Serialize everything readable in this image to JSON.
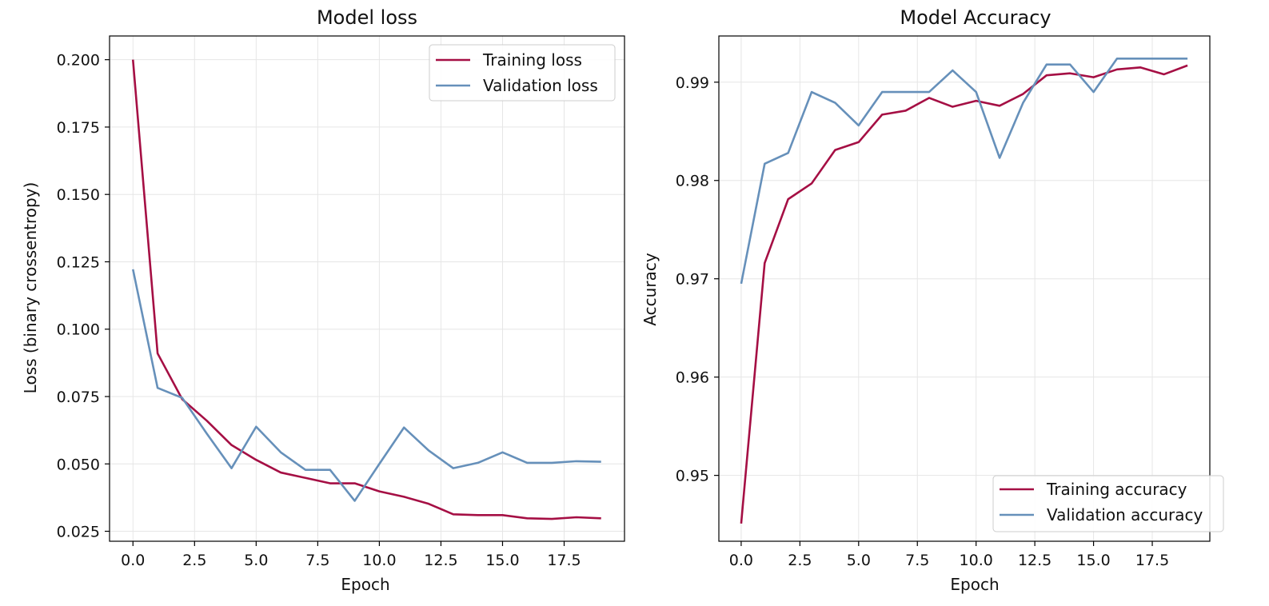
{
  "colors": {
    "training": "#a50f44",
    "validation": "#6690ba",
    "grid": "#e6e6e6",
    "axis": "#000000",
    "legend_border": "#cccccc"
  },
  "chart_data": [
    {
      "type": "line",
      "title": "Model loss",
      "xlabel": "Epoch",
      "ylabel": "Loss (binary crossentropy)",
      "xlim": [
        -0.95,
        19.95
      ],
      "ylim": [
        0.0213,
        0.2088
      ],
      "xticks": [
        0.0,
        2.5,
        5.0,
        7.5,
        10.0,
        12.5,
        15.0,
        17.5
      ],
      "xtick_labels": [
        "0.0",
        "2.5",
        "5.0",
        "7.5",
        "10.0",
        "12.5",
        "15.0",
        "17.5"
      ],
      "yticks": [
        0.025,
        0.05,
        0.075,
        0.1,
        0.125,
        0.15,
        0.175,
        0.2
      ],
      "ytick_labels": [
        "0.025",
        "0.050",
        "0.075",
        "0.100",
        "0.125",
        "0.150",
        "0.175",
        "0.200"
      ],
      "grid": true,
      "legend_position": "top-right",
      "x": [
        0,
        1,
        2,
        3,
        4,
        5,
        6,
        7,
        8,
        9,
        10,
        11,
        12,
        13,
        14,
        15,
        16,
        17,
        18,
        19
      ],
      "series": [
        {
          "name": "Training loss",
          "color_key": "training",
          "values": [
            0.2,
            0.091,
            0.074,
            0.066,
            0.057,
            0.0515,
            0.0468,
            0.0448,
            0.0428,
            0.0428,
            0.0398,
            0.0378,
            0.0352,
            0.0313,
            0.031,
            0.031,
            0.0298,
            0.0296,
            0.0302,
            0.0298
          ]
        },
        {
          "name": "Validation loss",
          "color_key": "validation",
          "values": [
            0.1222,
            0.0782,
            0.0745,
            0.0612,
            0.0484,
            0.0638,
            0.0543,
            0.0478,
            0.0478,
            0.0363,
            0.05,
            0.0635,
            0.055,
            0.0484,
            0.0504,
            0.0543,
            0.0504,
            0.0504,
            0.051,
            0.0508
          ]
        }
      ]
    },
    {
      "type": "line",
      "title": "Model Accuracy",
      "xlabel": "Epoch",
      "ylabel": "Accuracy",
      "xlim": [
        -0.95,
        19.95
      ],
      "ylim": [
        0.9433,
        0.9947
      ],
      "xticks": [
        0.0,
        2.5,
        5.0,
        7.5,
        10.0,
        12.5,
        15.0,
        17.5
      ],
      "xtick_labels": [
        "0.0",
        "2.5",
        "5.0",
        "7.5",
        "10.0",
        "12.5",
        "15.0",
        "17.5"
      ],
      "yticks": [
        0.95,
        0.96,
        0.97,
        0.98,
        0.99
      ],
      "ytick_labels": [
        "0.95",
        "0.96",
        "0.97",
        "0.98",
        "0.99"
      ],
      "grid": true,
      "legend_position": "bottom-right",
      "x": [
        0,
        1,
        2,
        3,
        4,
        5,
        6,
        7,
        8,
        9,
        10,
        11,
        12,
        13,
        14,
        15,
        16,
        17,
        18,
        19
      ],
      "series": [
        {
          "name": "Training accuracy",
          "color_key": "training",
          "values": [
            0.9451,
            0.9716,
            0.9781,
            0.9797,
            0.9831,
            0.9839,
            0.9867,
            0.9871,
            0.9884,
            0.9875,
            0.9881,
            0.9876,
            0.9888,
            0.9907,
            0.9909,
            0.9905,
            0.9913,
            0.9915,
            0.9908,
            0.9917
          ]
        },
        {
          "name": "Validation accuracy",
          "color_key": "validation",
          "values": [
            0.9695,
            0.9817,
            0.9828,
            0.989,
            0.9879,
            0.9856,
            0.989,
            0.989,
            0.989,
            0.9912,
            0.989,
            0.9823,
            0.9879,
            0.9918,
            0.9918,
            0.989,
            0.9924,
            0.9924,
            0.9924,
            0.9924
          ]
        }
      ]
    }
  ]
}
